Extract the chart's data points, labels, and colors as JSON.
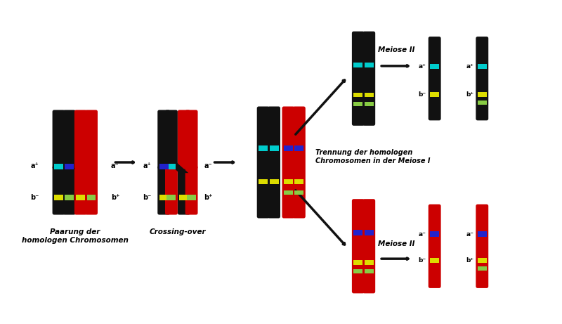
{
  "bg_color": "#ffffff",
  "figsize": [
    8.0,
    4.61
  ],
  "dpi": 100,
  "labels": {
    "paarung": "Paarung der\nhomologen Chromosomen",
    "crossing": "Crossing-over",
    "trennung": "Trennung der homologen\nChromosomen in der Meiose I",
    "meiose2_top": "Meiose II",
    "meiose2_bot": "Meiose II"
  },
  "colors": {
    "black_chr": "#111111",
    "red_chr": "#cc0000",
    "cyan": "#00cccc",
    "blue": "#2222cc",
    "yellow": "#dddd00",
    "green": "#88cc44",
    "arrow": "#111111"
  }
}
